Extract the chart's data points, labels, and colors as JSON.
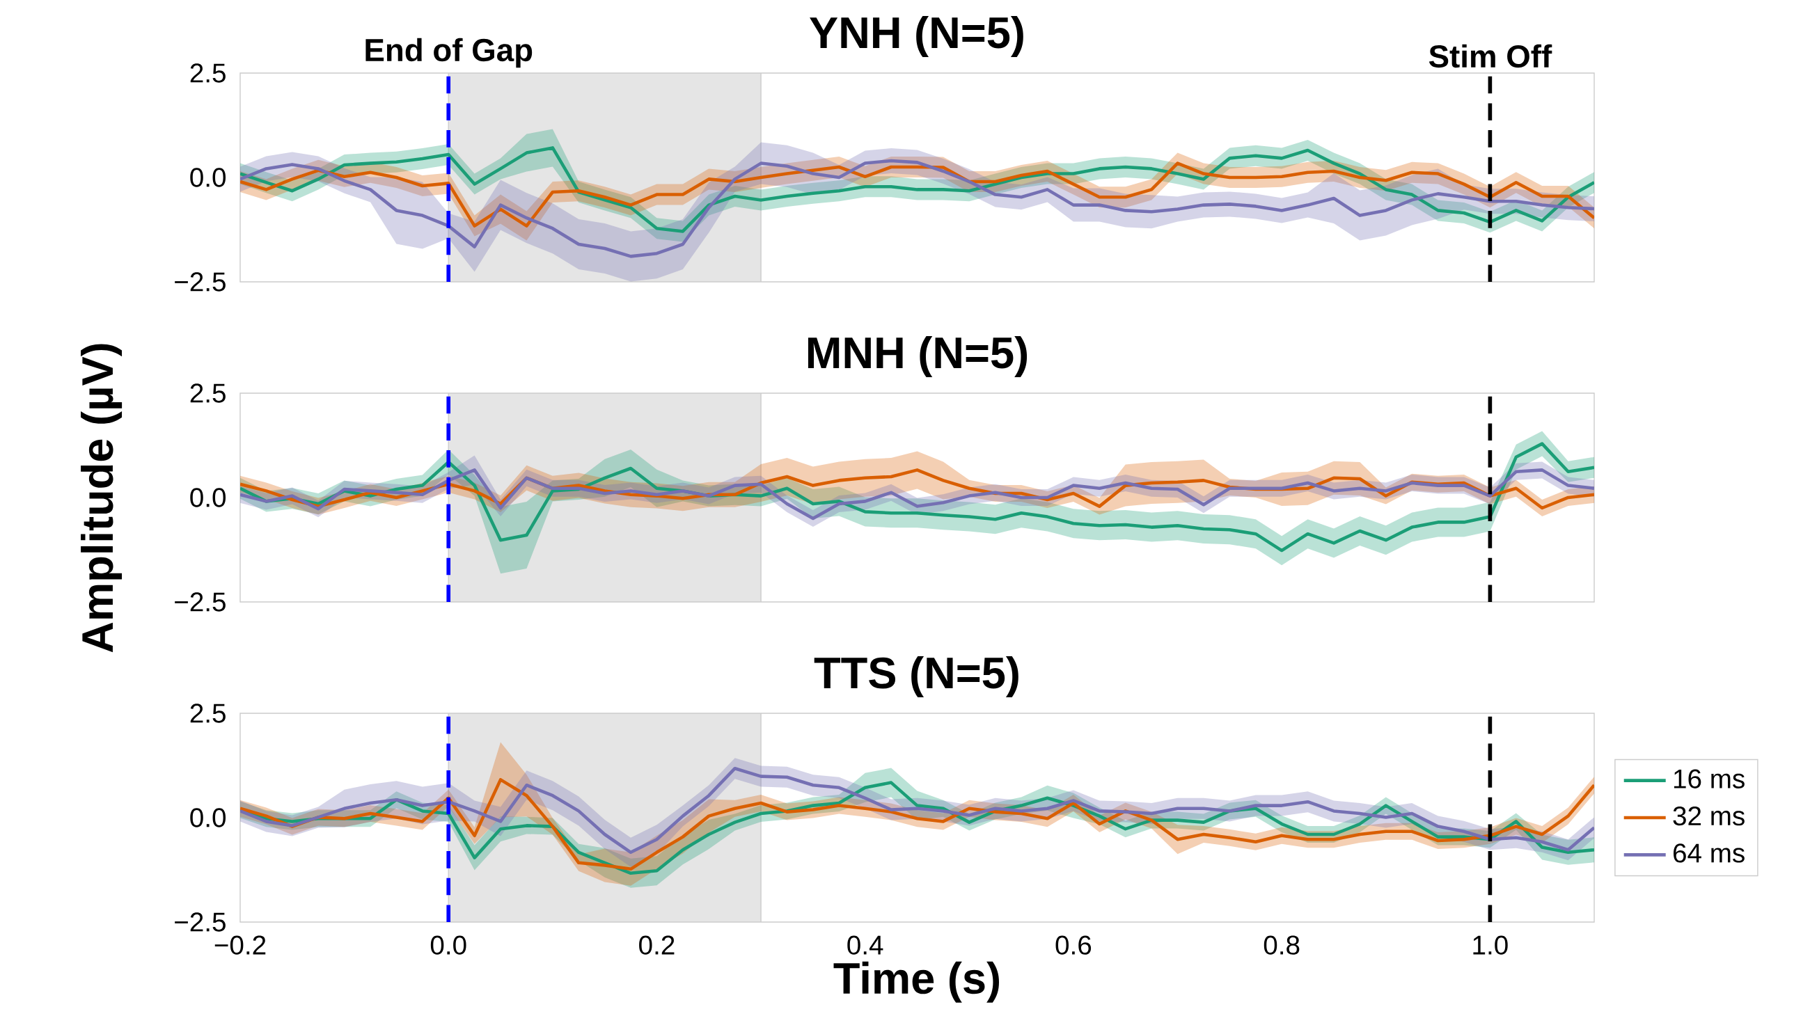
{
  "chart_data": [
    {
      "type": "line",
      "title": "YNH (N=5)",
      "tick_labels": "y",
      "xlim": [
        -0.2,
        1.1
      ],
      "ylim": [
        -2.5,
        2.5
      ],
      "yticks": [
        {
          "value": -2.5,
          "label": "−2.5"
        },
        {
          "value": 0,
          "label": "0.0"
        },
        {
          "value": 2.5,
          "label": "2.5"
        }
      ],
      "ref_lines": [
        {
          "axis": "x",
          "value": 0,
          "label": "End of Gap",
          "color": "#0000ff",
          "line_style": "dashed"
        },
        {
          "axis": "x",
          "value": 1,
          "label": "Stim Off",
          "color": "#000000",
          "line_style": "dashed"
        }
      ],
      "bands": [
        {
          "axis": "x",
          "from": 0,
          "to": 0.3,
          "color": "#e5e5e5"
        }
      ],
      "x": [
        -0.2,
        -0.175,
        -0.15,
        -0.125,
        -0.1,
        -0.075,
        -0.05,
        -0.025,
        0,
        0.025,
        0.05,
        0.075,
        0.1,
        0.125,
        0.15,
        0.175,
        0.2,
        0.225,
        0.25,
        0.275,
        0.3,
        0.325,
        0.35,
        0.375,
        0.4,
        0.425,
        0.45,
        0.475,
        0.5,
        0.525,
        0.55,
        0.575,
        0.6,
        0.625,
        0.65,
        0.675,
        0.7,
        0.725,
        0.75,
        0.775,
        0.8,
        0.825,
        0.85,
        0.875,
        0.9,
        0.925,
        0.95,
        0.975,
        1,
        1.025,
        1.05,
        1.075,
        1.1
      ],
      "series": [
        {
          "color": "#1b9e77",
          "values": [
            0.09,
            -0.12,
            -0.32,
            -0.04,
            0.3,
            0.34,
            0.37,
            0.45,
            0.55,
            -0.16,
            0.21,
            0.59,
            0.71,
            -0.35,
            -0.54,
            -0.72,
            -1.22,
            -1.29,
            -0.66,
            -0.45,
            -0.54,
            -0.45,
            -0.38,
            -0.32,
            -0.22,
            -0.22,
            -0.29,
            -0.29,
            -0.32,
            -0.16,
            0,
            0.09,
            0.09,
            0.21,
            0.25,
            0.21,
            0.09,
            -0.04,
            0.46,
            0.52,
            0.46,
            0.65,
            0.34,
            0.09,
            -0.29,
            -0.41,
            -0.79,
            -0.85,
            -1.07,
            -0.79,
            -1.04,
            -0.47,
            -0.12
          ],
          "lower": [
            -0.16,
            -0.37,
            -0.57,
            -0.29,
            0.05,
            0.09,
            0.12,
            0.2,
            0.3,
            -0.41,
            -0.04,
            0.14,
            0.26,
            -0.6,
            -0.79,
            -0.97,
            -1.47,
            -1.54,
            -0.91,
            -0.7,
            -0.79,
            -0.7,
            -0.63,
            -0.57,
            -0.47,
            -0.47,
            -0.54,
            -0.54,
            -0.57,
            -0.41,
            -0.25,
            -0.16,
            -0.16,
            -0.04,
            0,
            -0.04,
            -0.16,
            -0.29,
            0.21,
            0.27,
            0.21,
            0.4,
            0.09,
            -0.16,
            -0.54,
            -0.66,
            -1.04,
            -1.1,
            -1.32,
            -1.04,
            -1.29,
            -0.72,
            -0.37
          ],
          "upper": [
            0.34,
            0.13,
            -0.07,
            0.21,
            0.55,
            0.59,
            0.62,
            0.7,
            0.8,
            0.09,
            0.46,
            1.04,
            1.16,
            -0.1,
            -0.29,
            -0.47,
            -0.97,
            -1.04,
            -0.41,
            -0.2,
            -0.29,
            -0.2,
            -0.13,
            -0.07,
            0.03,
            0.03,
            -0.04,
            -0.04,
            -0.07,
            0.09,
            0.25,
            0.34,
            0.34,
            0.46,
            0.5,
            0.46,
            0.34,
            0.21,
            0.71,
            0.77,
            0.71,
            0.9,
            0.59,
            0.34,
            -0.04,
            -0.16,
            -0.54,
            -0.6,
            -0.82,
            -0.54,
            -0.79,
            -0.22,
            0.13
          ]
        },
        {
          "color": "#d95f02",
          "values": [
            -0.1,
            -0.29,
            -0.04,
            0.17,
            0.02,
            0.12,
            0,
            -0.2,
            -0.14,
            -1.16,
            -0.76,
            -1.16,
            -0.35,
            -0.32,
            -0.47,
            -0.66,
            -0.41,
            -0.41,
            -0.04,
            -0.1,
            0,
            0.09,
            0.17,
            0.25,
            0.02,
            0.25,
            0.25,
            0.24,
            -0.1,
            -0.1,
            0.05,
            0.15,
            -0.16,
            -0.47,
            -0.47,
            -0.29,
            0.34,
            0.09,
            0,
            0,
            0.02,
            0.12,
            0.15,
            0,
            -0.07,
            0.12,
            0.09,
            -0.16,
            -0.47,
            -0.12,
            -0.45,
            -0.45,
            -0.97
          ],
          "lower": [
            -0.35,
            -0.54,
            -0.29,
            -0.08,
            -0.23,
            -0.13,
            -0.25,
            -0.45,
            -0.39,
            -1.41,
            -1.11,
            -1.51,
            -0.6,
            -0.57,
            -0.72,
            -0.91,
            -0.66,
            -0.66,
            -0.29,
            -0.35,
            -0.25,
            -0.16,
            -0.08,
            0,
            -0.23,
            0,
            0,
            -0.01,
            -0.35,
            -0.35,
            -0.2,
            -0.1,
            -0.41,
            -0.72,
            -0.72,
            -0.54,
            0.09,
            -0.16,
            -0.25,
            -0.25,
            -0.23,
            -0.13,
            -0.1,
            -0.25,
            -0.32,
            -0.13,
            -0.16,
            -0.41,
            -0.72,
            -0.37,
            -0.7,
            -0.7,
            -1.22
          ],
          "upper": [
            0.15,
            -0.04,
            0.21,
            0.42,
            0.27,
            0.37,
            0.25,
            0.05,
            0.11,
            -0.91,
            -0.41,
            -0.81,
            -0.1,
            -0.07,
            -0.22,
            -0.41,
            -0.16,
            -0.16,
            0.21,
            0.15,
            0.25,
            0.34,
            0.42,
            0.5,
            0.27,
            0.5,
            0.5,
            0.49,
            0.15,
            0.15,
            0.3,
            0.4,
            0.09,
            -0.22,
            -0.22,
            -0.04,
            0.59,
            0.34,
            0.25,
            0.25,
            0.27,
            0.37,
            0.4,
            0.25,
            0.18,
            0.37,
            0.34,
            0.09,
            -0.22,
            0.13,
            -0.2,
            -0.2,
            -0.72
          ]
        },
        {
          "color": "#7570b3",
          "values": [
            -0.04,
            0.21,
            0.31,
            0.21,
            -0.08,
            -0.29,
            -0.79,
            -0.91,
            -1.16,
            -1.66,
            -0.66,
            -0.97,
            -1.22,
            -1.6,
            -1.7,
            -1.89,
            -1.82,
            -1.6,
            -0.72,
            -0.04,
            0.34,
            0.27,
            0.09,
            0,
            0.34,
            0.4,
            0.36,
            0.15,
            -0.1,
            -0.41,
            -0.47,
            -0.29,
            -0.66,
            -0.66,
            -0.79,
            -0.82,
            -0.76,
            -0.66,
            -0.64,
            -0.69,
            -0.79,
            -0.66,
            -0.5,
            -0.91,
            -0.79,
            -0.54,
            -0.39,
            -0.47,
            -0.57,
            -0.57,
            -0.66,
            -0.72,
            -0.75
          ],
          "lower": [
            -0.34,
            -0.09,
            0.01,
            -0.09,
            -0.38,
            -0.59,
            -1.59,
            -1.71,
            -1.46,
            -2.26,
            -1.26,
            -1.57,
            -1.82,
            -2.2,
            -2.3,
            -2.49,
            -2.42,
            -2.2,
            -1.32,
            -0.34,
            -0.16,
            -0.23,
            -0.41,
            -0.3,
            0.04,
            0.1,
            0.06,
            -0.15,
            -0.4,
            -0.71,
            -0.77,
            -0.59,
            -1.06,
            -1.06,
            -1.19,
            -1.22,
            -1.06,
            -0.96,
            -0.94,
            -0.99,
            -1.09,
            -0.96,
            -1.1,
            -1.51,
            -1.39,
            -1.14,
            -0.99,
            -0.77,
            -0.87,
            -0.87,
            -0.96,
            -1.02,
            -1.05
          ],
          "upper": [
            0.26,
            0.51,
            0.61,
            0.51,
            0.22,
            0.01,
            0.01,
            -0.11,
            -0.86,
            -1.06,
            -0.06,
            -0.37,
            -0.62,
            -1.0,
            -1.1,
            -1.29,
            -1.22,
            -1.0,
            -0.12,
            0.26,
            0.84,
            0.77,
            0.59,
            0.3,
            0.64,
            0.7,
            0.66,
            0.45,
            0.2,
            -0.11,
            -0.17,
            0.01,
            -0.26,
            -0.26,
            -0.39,
            -0.42,
            -0.46,
            -0.36,
            -0.34,
            -0.39,
            -0.49,
            -0.36,
            0.1,
            -0.31,
            -0.19,
            0.06,
            0.21,
            -0.17,
            -0.27,
            -0.27,
            -0.36,
            -0.42,
            -0.45
          ]
        }
      ]
    },
    {
      "type": "line",
      "title": "MNH (N=5)",
      "ylabel": "Amplitude (µV)",
      "tick_labels": "y",
      "xlim": [
        -0.2,
        1.1
      ],
      "ylim": [
        -2.5,
        2.5
      ],
      "yticks": [
        {
          "value": -2.5,
          "label": "−2.5"
        },
        {
          "value": 0,
          "label": "0.0"
        },
        {
          "value": 2.5,
          "label": "2.5"
        }
      ],
      "ref_lines": [
        {
          "axis": "x",
          "value": 0,
          "color": "#0000ff",
          "line_style": "dashed"
        },
        {
          "axis": "x",
          "value": 1,
          "color": "#000000",
          "line_style": "dashed"
        }
      ],
      "bands": [
        {
          "axis": "x",
          "from": 0,
          "to": 0.3,
          "color": "#e5e5e5"
        }
      ],
      "x": [
        -0.2,
        -0.175,
        -0.15,
        -0.125,
        -0.1,
        -0.075,
        -0.05,
        -0.025,
        0,
        0.025,
        0.05,
        0.075,
        0.1,
        0.125,
        0.15,
        0.175,
        0.2,
        0.225,
        0.25,
        0.275,
        0.3,
        0.325,
        0.35,
        0.375,
        0.4,
        0.425,
        0.45,
        0.475,
        0.5,
        0.525,
        0.55,
        0.575,
        0.6,
        0.625,
        0.65,
        0.675,
        0.7,
        0.725,
        0.75,
        0.775,
        0.8,
        0.825,
        0.85,
        0.875,
        0.9,
        0.925,
        0.95,
        0.975,
        1,
        1.025,
        1.05,
        1.075,
        1.1
      ],
      "series": [
        {
          "color": "#1b9e77",
          "values": [
            0.22,
            -0.09,
            -0.02,
            -0.15,
            0.16,
            0.04,
            0.2,
            0.29,
            0.85,
            0.29,
            -1.02,
            -0.9,
            0.16,
            0.2,
            0.47,
            0.7,
            0.22,
            0.16,
            0.04,
            0.07,
            0.04,
            0.22,
            -0.15,
            -0.09,
            -0.34,
            -0.37,
            -0.37,
            -0.42,
            -0.46,
            -0.52,
            -0.37,
            -0.46,
            -0.62,
            -0.67,
            -0.65,
            -0.71,
            -0.67,
            -0.75,
            -0.77,
            -0.87,
            -1.27,
            -0.87,
            -1.09,
            -0.8,
            -1.02,
            -0.71,
            -0.59,
            -0.59,
            -0.46,
            0.97,
            1.29,
            0.62,
            0.72
          ],
          "lower": [
            -0.03,
            -0.34,
            -0.27,
            -0.4,
            -0.09,
            -0.21,
            -0.05,
            0.04,
            0.55,
            0.04,
            -1.82,
            -1.7,
            -0.09,
            -0.05,
            0.02,
            0.25,
            -0.23,
            -0.09,
            -0.21,
            -0.18,
            -0.21,
            -0.03,
            -0.5,
            -0.44,
            -0.69,
            -0.72,
            -0.72,
            -0.77,
            -0.81,
            -0.87,
            -0.72,
            -0.81,
            -0.97,
            -1.02,
            -1.0,
            -1.06,
            -1.02,
            -1.1,
            -1.12,
            -1.22,
            -1.62,
            -1.22,
            -1.44,
            -1.15,
            -1.37,
            -1.06,
            -0.94,
            -0.94,
            -0.81,
            0.67,
            0.99,
            0.37,
            0.47
          ],
          "upper": [
            0.47,
            0.16,
            0.23,
            0.1,
            0.41,
            0.29,
            0.45,
            0.54,
            1.15,
            0.54,
            -0.22,
            -0.1,
            0.41,
            0.45,
            0.92,
            1.15,
            0.67,
            0.41,
            0.29,
            0.32,
            0.29,
            0.47,
            0.2,
            0.26,
            0.01,
            -0.02,
            -0.02,
            -0.07,
            -0.11,
            -0.17,
            -0.02,
            -0.11,
            -0.27,
            -0.32,
            -0.3,
            -0.36,
            -0.32,
            -0.4,
            -0.42,
            -0.52,
            -0.92,
            -0.52,
            -0.74,
            -0.45,
            -0.67,
            -0.36,
            -0.24,
            -0.24,
            -0.11,
            1.27,
            1.59,
            0.87,
            0.97
          ]
        },
        {
          "color": "#d95f02",
          "values": [
            0.32,
            0.16,
            -0.05,
            -0.21,
            -0.05,
            0.12,
            0,
            0.16,
            0.32,
            0.16,
            -0.15,
            0.47,
            0.22,
            0.29,
            0.16,
            0.07,
            0.04,
            -0.02,
            0.07,
            0.07,
            0.35,
            0.5,
            0.29,
            0.41,
            0.47,
            0.5,
            0.66,
            0.41,
            0.22,
            0.1,
            0.1,
            -0.05,
            0.1,
            -0.21,
            0.29,
            0.35,
            0.37,
            0.41,
            0.25,
            0.2,
            0.2,
            0.22,
            0.47,
            0.45,
            0.04,
            0.37,
            0.32,
            0.35,
            0.04,
            0.22,
            -0.25,
            0,
            0.07
          ],
          "lower": [
            0.12,
            -0.04,
            -0.25,
            -0.41,
            -0.25,
            -0.08,
            -0.2,
            -0.04,
            0.12,
            -0.04,
            -0.35,
            0.17,
            -0.08,
            -0.01,
            -0.14,
            -0.23,
            -0.26,
            -0.32,
            -0.23,
            -0.23,
            -0.1,
            0.05,
            -0.16,
            -0.04,
            0.02,
            0.05,
            0.21,
            -0.04,
            0.02,
            -0.1,
            -0.1,
            -0.25,
            -0.1,
            -0.41,
            -0.21,
            -0.15,
            -0.13,
            -0.09,
            0.05,
            0,
            -0.2,
            -0.18,
            0.07,
            0.05,
            -0.16,
            0.17,
            0.12,
            0.15,
            -0.16,
            0.02,
            -0.45,
            -0.2,
            -0.13
          ],
          "upper": [
            0.52,
            0.36,
            0.15,
            -0.01,
            0.15,
            0.32,
            0.2,
            0.35,
            0.52,
            0.36,
            0.05,
            0.77,
            0.52,
            0.59,
            0.46,
            0.37,
            0.34,
            0.28,
            0.37,
            0.37,
            0.8,
            0.95,
            0.74,
            0.86,
            0.92,
            0.95,
            1.11,
            0.86,
            0.42,
            0.3,
            0.3,
            0.15,
            0.3,
            -0.01,
            0.79,
            0.85,
            0.87,
            0.91,
            0.45,
            0.4,
            0.6,
            0.62,
            0.87,
            0.85,
            0.24,
            0.57,
            0.52,
            0.55,
            0.24,
            0.42,
            -0.05,
            0.2,
            0.27
          ]
        },
        {
          "color": "#7570b3",
          "values": [
            0.07,
            -0.09,
            0.04,
            -0.27,
            0.2,
            0.16,
            0.12,
            0.07,
            0.41,
            0.66,
            -0.25,
            0.47,
            0.22,
            0.22,
            0.1,
            0.16,
            0.07,
            0.16,
            0.04,
            0.29,
            0.32,
            -0.15,
            -0.5,
            -0.15,
            -0.09,
            0.12,
            -0.21,
            -0.12,
            0.04,
            0.12,
            0,
            0,
            0.29,
            0.22,
            0.35,
            0.22,
            0.2,
            -0.17,
            0.22,
            0.22,
            0.22,
            0.35,
            0.16,
            0.22,
            0.16,
            0.35,
            0.29,
            0.29,
            0.04,
            0.62,
            0.66,
            0.29,
            0.22
          ],
          "lower": [
            -0.13,
            -0.29,
            -0.16,
            -0.47,
            0,
            -0.04,
            -0.08,
            -0.13,
            0.21,
            0.31,
            -0.45,
            0.27,
            0.02,
            0.02,
            -0.1,
            -0.04,
            -0.13,
            -0.04,
            -0.16,
            0.09,
            0.12,
            -0.35,
            -0.7,
            -0.35,
            -0.29,
            -0.08,
            -0.41,
            -0.32,
            -0.16,
            -0.08,
            -0.2,
            -0.2,
            0.09,
            0.02,
            0.15,
            0.02,
            0,
            -0.37,
            0.02,
            0.02,
            0.02,
            0.15,
            -0.04,
            0.02,
            -0.04,
            0.15,
            0.09,
            0.09,
            -0.16,
            0.42,
            0.46,
            0.09,
            0.02
          ],
          "upper": [
            0.27,
            0.11,
            0.24,
            -0.07,
            0.4,
            0.36,
            0.32,
            0.27,
            0.61,
            1.01,
            -0.05,
            0.67,
            0.42,
            0.42,
            0.3,
            0.36,
            0.27,
            0.36,
            0.24,
            0.49,
            0.52,
            0.05,
            -0.3,
            0.05,
            0.11,
            0.32,
            -0.01,
            0.08,
            0.24,
            0.32,
            0.2,
            0.2,
            0.49,
            0.42,
            0.55,
            0.42,
            0.4,
            0.03,
            0.42,
            0.42,
            0.42,
            0.55,
            0.36,
            0.42,
            0.36,
            0.55,
            0.49,
            0.49,
            0.24,
            0.82,
            0.86,
            0.49,
            0.42
          ]
        }
      ]
    },
    {
      "type": "line",
      "title": "TTS (N=5)",
      "xlabel": "Time (s)",
      "legend": "right",
      "xlim": [
        -0.2,
        1.1
      ],
      "ylim": [
        -2.5,
        2.5
      ],
      "xticks": [
        {
          "value": -0.2,
          "label": "−0.2"
        },
        {
          "value": 0,
          "label": "0.0"
        },
        {
          "value": 0.2,
          "label": "0.2"
        },
        {
          "value": 0.4,
          "label": "0.4"
        },
        {
          "value": 0.6,
          "label": "0.6"
        },
        {
          "value": 0.8,
          "label": "0.8"
        },
        {
          "value": 1,
          "label": "1.0"
        }
      ],
      "yticks": [
        {
          "value": -2.5,
          "label": "−2.5"
        },
        {
          "value": 0,
          "label": "0.0"
        },
        {
          "value": 2.5,
          "label": "2.5"
        }
      ],
      "ref_lines": [
        {
          "axis": "x",
          "value": 0,
          "color": "#0000ff",
          "line_style": "dashed"
        },
        {
          "axis": "x",
          "value": 1,
          "color": "#000000",
          "line_style": "dashed"
        }
      ],
      "bands": [
        {
          "axis": "x",
          "from": 0,
          "to": 0.3,
          "color": "#e5e5e5"
        }
      ],
      "x": [
        -0.2,
        -0.175,
        -0.15,
        -0.125,
        -0.1,
        -0.075,
        -0.05,
        -0.025,
        0,
        0.025,
        0.05,
        0.075,
        0.1,
        0.125,
        0.15,
        0.175,
        0.2,
        0.225,
        0.25,
        0.275,
        0.3,
        0.325,
        0.35,
        0.375,
        0.4,
        0.425,
        0.45,
        0.475,
        0.5,
        0.525,
        0.55,
        0.575,
        0.6,
        0.625,
        0.65,
        0.675,
        0.7,
        0.725,
        0.75,
        0.775,
        0.8,
        0.825,
        0.85,
        0.875,
        0.9,
        0.925,
        0.95,
        0.975,
        1,
        1.025,
        1.05,
        1.075,
        1.1
      ],
      "series": [
        {
          "name": "16 ms",
          "color": "#1b9e77",
          "values": [
            0.19,
            -0.02,
            -0.09,
            -0.02,
            -0.02,
            -0.02,
            0.43,
            0.16,
            0.1,
            -0.96,
            -0.27,
            -0.19,
            -0.21,
            -0.83,
            -1.08,
            -1.33,
            -1.27,
            -0.77,
            -0.4,
            -0.11,
            0.1,
            0.16,
            0.29,
            0.35,
            0.72,
            0.84,
            0.29,
            0.22,
            -0.11,
            0.16,
            0.29,
            0.47,
            0.29,
            0.04,
            -0.27,
            -0.06,
            -0.06,
            -0.11,
            0.16,
            0.22,
            -0.15,
            -0.4,
            -0.4,
            -0.15,
            0.29,
            -0.09,
            -0.46,
            -0.46,
            -0.52,
            -0.09,
            -0.71,
            -0.83,
            -0.77
          ],
          "lower": [
            -0.01,
            -0.22,
            -0.29,
            -0.22,
            -0.22,
            -0.22,
            0.23,
            -0.04,
            -0.1,
            -1.26,
            -0.57,
            -0.39,
            -0.41,
            -1.03,
            -1.43,
            -1.68,
            -1.62,
            -1.12,
            -0.75,
            -0.31,
            -0.1,
            -0.04,
            0.09,
            0.15,
            0.37,
            0.49,
            -0.06,
            0.02,
            -0.31,
            -0.04,
            0.09,
            0.17,
            -0.01,
            -0.16,
            -0.47,
            -0.26,
            -0.26,
            -0.31,
            -0.04,
            0.02,
            -0.35,
            -0.6,
            -0.6,
            -0.35,
            0.09,
            -0.29,
            -0.66,
            -0.66,
            -0.72,
            -0.29,
            -1.01,
            -1.13,
            -1.07
          ],
          "upper": [
            0.39,
            0.18,
            0.11,
            0.18,
            0.18,
            0.18,
            0.63,
            0.36,
            0.3,
            -0.66,
            0.03,
            0.02,
            -0.01,
            -0.63,
            -0.73,
            -0.98,
            -0.92,
            -0.42,
            -0.05,
            0.09,
            0.3,
            0.36,
            0.49,
            0.55,
            1.07,
            1.19,
            0.64,
            0.42,
            0.09,
            0.36,
            0.49,
            0.77,
            0.59,
            0.24,
            -0.07,
            0.14,
            0.14,
            0.09,
            0.36,
            0.42,
            0.05,
            -0.2,
            -0.2,
            0.05,
            0.49,
            0.11,
            -0.26,
            -0.26,
            -0.32,
            0.11,
            -0.41,
            -0.53,
            -0.47
          ]
        },
        {
          "name": "32 ms",
          "color": "#d95f02",
          "values": [
            0.22,
            0.04,
            -0.21,
            0.01,
            -0.02,
            0.1,
            0.01,
            -0.09,
            0.47,
            -0.43,
            0.91,
            0.53,
            -0.21,
            -1.08,
            -1.14,
            -1.23,
            -0.83,
            -0.46,
            0.04,
            0.22,
            0.35,
            0.14,
            0.19,
            0.29,
            0.22,
            0.14,
            -0.02,
            -0.09,
            0.22,
            0.14,
            0.1,
            -0.02,
            0.35,
            -0.15,
            0.16,
            -0.06,
            -0.52,
            -0.4,
            -0.48,
            -0.58,
            -0.43,
            -0.52,
            -0.52,
            -0.4,
            -0.33,
            -0.33,
            -0.55,
            -0.52,
            -0.43,
            -0.21,
            -0.4,
            0.04,
            0.78
          ],
          "lower": [
            0.02,
            -0.16,
            -0.41,
            -0.19,
            -0.22,
            -0.1,
            -0.19,
            -0.29,
            0.27,
            -0.63,
            0.01,
            0.03,
            -0.41,
            -1.28,
            -1.54,
            -1.63,
            -1.23,
            -0.86,
            -0.36,
            0.02,
            0.15,
            -0.06,
            -0.01,
            0.09,
            0.02,
            -0.06,
            -0.22,
            -0.29,
            0.02,
            -0.06,
            -0.1,
            -0.22,
            0.15,
            -0.35,
            -0.04,
            -0.26,
            -0.87,
            -0.6,
            -0.68,
            -0.78,
            -0.63,
            -0.72,
            -0.72,
            -0.6,
            -0.53,
            -0.53,
            -0.75,
            -0.72,
            -0.63,
            -0.41,
            -0.6,
            -0.16,
            0.58
          ],
          "upper": [
            0.42,
            0.24,
            -0.01,
            0.21,
            0.18,
            0.3,
            0.21,
            0.11,
            0.67,
            -0.23,
            1.81,
            1.03,
            -0.01,
            -0.88,
            -0.74,
            -0.83,
            -0.43,
            -0.06,
            0.44,
            0.42,
            0.55,
            0.34,
            0.39,
            0.49,
            0.42,
            0.34,
            0.18,
            0.11,
            0.42,
            0.34,
            0.3,
            0.18,
            0.55,
            0.05,
            0.36,
            0.14,
            -0.17,
            -0.2,
            -0.28,
            -0.38,
            -0.23,
            -0.32,
            -0.32,
            -0.2,
            -0.13,
            -0.13,
            -0.35,
            -0.32,
            -0.23,
            -0.01,
            -0.2,
            0.24,
            0.98
          ]
        },
        {
          "name": "64 ms",
          "color": "#7570b3",
          "values": [
            0.16,
            -0.09,
            -0.19,
            0.01,
            0.22,
            0.35,
            0.43,
            0.29,
            0.38,
            0.16,
            -0.09,
            0.78,
            0.53,
            0.16,
            -0.4,
            -0.83,
            -0.52,
            0.04,
            0.53,
            1.18,
            0.99,
            0.97,
            0.78,
            0.72,
            0.47,
            0.19,
            0.22,
            0.16,
            0.06,
            0.22,
            0.16,
            0.22,
            0.41,
            0.16,
            0.14,
            0.1,
            0.22,
            0.22,
            0.16,
            0.29,
            0.29,
            0.38,
            0.16,
            0.1,
            0.01,
            0.1,
            -0.21,
            -0.33,
            -0.52,
            -0.48,
            -0.58,
            -0.77,
            -0.24
          ],
          "lower": [
            -0.09,
            -0.34,
            -0.44,
            -0.24,
            -0.23,
            -0.1,
            -0.02,
            -0.16,
            -0.07,
            -0.09,
            -0.44,
            0.43,
            0.18,
            -0.19,
            -0.75,
            -1.18,
            -0.87,
            -0.21,
            0.28,
            0.93,
            0.74,
            0.72,
            0.53,
            0.47,
            0.22,
            -0.06,
            -0.03,
            -0.09,
            -0.19,
            -0.03,
            -0.09,
            -0.03,
            0.16,
            -0.09,
            -0.11,
            -0.15,
            -0.03,
            -0.03,
            -0.09,
            0.04,
            0.04,
            0.13,
            -0.09,
            -0.15,
            -0.24,
            -0.15,
            -0.46,
            -0.58,
            -0.77,
            -0.73,
            -0.83,
            -1.02,
            -0.49
          ],
          "upper": [
            0.41,
            0.16,
            0.06,
            0.26,
            0.67,
            0.8,
            0.88,
            0.74,
            0.83,
            0.41,
            0.26,
            1.13,
            0.88,
            0.51,
            -0.05,
            -0.48,
            -0.17,
            0.29,
            0.78,
            1.43,
            1.24,
            1.22,
            1.03,
            0.97,
            0.72,
            0.44,
            0.47,
            0.41,
            0.31,
            0.47,
            0.41,
            0.47,
            0.66,
            0.41,
            0.39,
            0.35,
            0.47,
            0.47,
            0.41,
            0.54,
            0.54,
            0.63,
            0.41,
            0.35,
            0.26,
            0.35,
            0.04,
            -0.08,
            -0.27,
            -0.23,
            -0.33,
            -0.52,
            0.01
          ]
        }
      ]
    }
  ]
}
